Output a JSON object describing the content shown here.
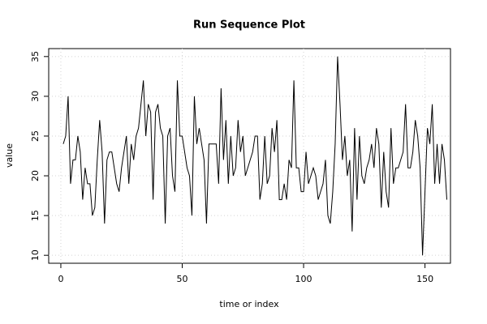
{
  "chart_data": {
    "type": "line",
    "title": "Run Sequence Plot",
    "x_label": "time or index",
    "y_label": "value",
    "x": [
      1,
      2,
      3,
      4,
      5,
      6,
      7,
      8,
      9,
      10,
      11,
      12,
      13,
      14,
      15,
      16,
      17,
      18,
      19,
      20,
      21,
      22,
      23,
      24,
      25,
      26,
      27,
      28,
      29,
      30,
      31,
      32,
      33,
      34,
      35,
      36,
      37,
      38,
      39,
      40,
      41,
      42,
      43,
      44,
      45,
      46,
      47,
      48,
      49,
      50,
      51,
      52,
      53,
      54,
      55,
      56,
      57,
      58,
      59,
      60,
      61,
      62,
      63,
      64,
      65,
      66,
      67,
      68,
      69,
      70,
      71,
      72,
      73,
      74,
      75,
      76,
      77,
      78,
      79,
      80,
      81,
      82,
      83,
      84,
      85,
      86,
      87,
      88,
      89,
      90,
      91,
      92,
      93,
      94,
      95,
      96,
      97,
      98,
      99,
      100,
      101,
      102,
      103,
      104,
      105,
      106,
      107,
      108,
      109,
      110,
      111,
      112,
      113,
      114,
      115,
      116,
      117,
      118,
      119,
      120,
      121,
      122,
      123,
      124,
      125,
      126,
      127,
      128,
      129,
      130,
      131,
      132,
      133,
      134,
      135,
      136,
      137,
      138,
      139,
      140,
      141,
      142,
      143,
      144,
      145,
      146,
      147,
      148,
      149,
      150,
      151,
      152,
      153,
      154,
      155,
      156,
      157,
      158,
      159
    ],
    "values": [
      24,
      25,
      30,
      19,
      22,
      22,
      25,
      23,
      17,
      21,
      19,
      19,
      15,
      16,
      22,
      27,
      23,
      14,
      22,
      23,
      23,
      21,
      19,
      18,
      21,
      23,
      25,
      19,
      24,
      22,
      25,
      26,
      29,
      32,
      25,
      29,
      28,
      17,
      28,
      29,
      26,
      25,
      14,
      25,
      26,
      20,
      18,
      32,
      25,
      25,
      23,
      21,
      20,
      15,
      30,
      24,
      26,
      24,
      22,
      14,
      24,
      24,
      24,
      24,
      19,
      31,
      22,
      27,
      19,
      25,
      20,
      21,
      27,
      23,
      25,
      20,
      21,
      22,
      23,
      25,
      25,
      17,
      19,
      25,
      19,
      20,
      26,
      23,
      27,
      17,
      17,
      19,
      17,
      22,
      21,
      32,
      21,
      21,
      18,
      18,
      23,
      19,
      20,
      21,
      20,
      17,
      18,
      19,
      22,
      15,
      14,
      18,
      24,
      35,
      29,
      22,
      25,
      20,
      22,
      13,
      26,
      17,
      25,
      20,
      19,
      21,
      22,
      24,
      21,
      26,
      24,
      16,
      23,
      18,
      16,
      26,
      19,
      21,
      21,
      22,
      23,
      29,
      21,
      21,
      23,
      27,
      25,
      21,
      10,
      18,
      26,
      24,
      29,
      19,
      24,
      19,
      24,
      22,
      17
    ],
    "color": "#000000",
    "xlim": [
      -5,
      160.5
    ],
    "xticks": [
      0,
      50,
      100,
      150
    ],
    "ylim": [
      9,
      36
    ],
    "yticks": [
      10,
      15,
      20,
      25,
      30,
      35
    ],
    "grid": true
  }
}
